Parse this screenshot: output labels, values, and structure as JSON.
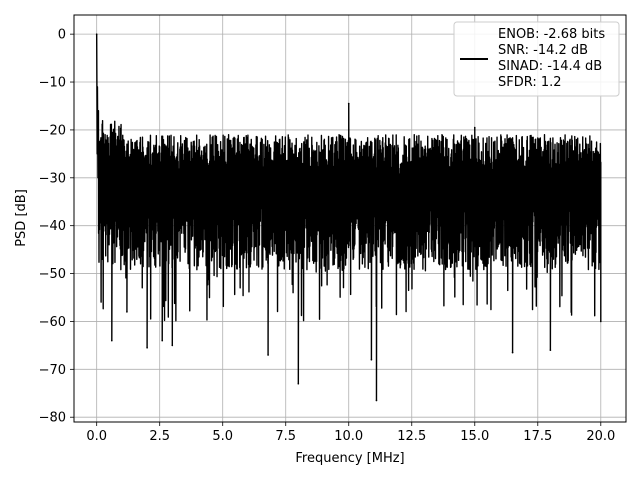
{
  "chart_data": {
    "type": "line",
    "xlabel": "Frequency [MHz]",
    "ylabel": "PSD [dB]",
    "xlim": [
      -0.9,
      21
    ],
    "ylim": [
      -81,
      4
    ],
    "xticks": [
      0.0,
      2.5,
      5.0,
      7.5,
      10.0,
      12.5,
      15.0,
      17.5,
      20.0
    ],
    "xtick_labels": [
      "0.0",
      "2.5",
      "5.0",
      "7.5",
      "10.0",
      "12.5",
      "15.0",
      "17.5",
      "20.0"
    ],
    "yticks": [
      0,
      -10,
      -20,
      -30,
      -40,
      -50,
      -60,
      -70,
      -80
    ],
    "ytick_labels": [
      "0",
      "−10",
      "−20",
      "−30",
      "−40",
      "−50",
      "−60",
      "−70",
      "−80"
    ],
    "grid": true,
    "legend_position": "upper right",
    "legend": [
      "ENOB: -2.68 bits",
      "SNR: -14.2 dB",
      "SINAD: -14.4 dB",
      "SFDR: 1.2"
    ],
    "series": [
      {
        "color": "#000000",
        "peak": {
          "x": 0.0,
          "y": 0
        },
        "spurs": [
          {
            "x": 10.0,
            "y": -14.5
          },
          {
            "x": 15.0,
            "y": -19.5
          }
        ],
        "deep_nulls": [
          {
            "x": 0.6,
            "y": -64
          },
          {
            "x": 1.2,
            "y": -58
          },
          {
            "x": 2.0,
            "y": -65.5
          },
          {
            "x": 2.6,
            "y": -64
          },
          {
            "x": 3.0,
            "y": -65
          },
          {
            "x": 6.8,
            "y": -67
          },
          {
            "x": 8.0,
            "y": -73
          },
          {
            "x": 10.9,
            "y": -68
          },
          {
            "x": 11.1,
            "y": -76.5
          },
          {
            "x": 16.5,
            "y": -66.5
          },
          {
            "x": 18.0,
            "y": -66
          },
          {
            "x": 20.0,
            "y": -60
          }
        ],
        "upper_envelope_db": -21,
        "lower_envelope_db": -45,
        "noise_floor_mean_db": -31,
        "x_range": [
          0,
          20
        ]
      }
    ]
  }
}
